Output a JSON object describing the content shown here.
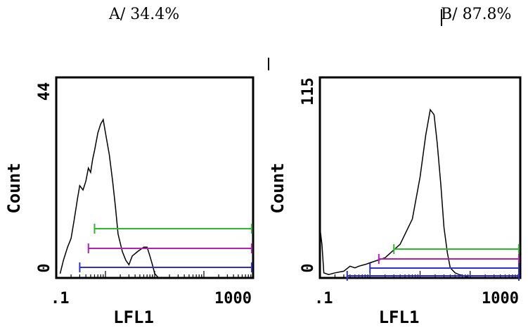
{
  "captions": [
    "A/ 34.4%",
    "B/ 87.8%"
  ],
  "chart_data": [
    {
      "type": "line",
      "title": "A/ 34.4%",
      "xlabel": "LFL1",
      "ylabel": "Count",
      "x_scale": "log",
      "xlim": [
        0.1,
        1000
      ],
      "ylim": [
        0,
        44
      ],
      "x_ticks": [
        ".1",
        "1000"
      ],
      "y_ticks": [
        "0",
        "44"
      ],
      "series": [
        {
          "values": [
            [
              0.12,
              1
            ],
            [
              0.14,
              4
            ],
            [
              0.17,
              7
            ],
            [
              0.2,
              9
            ],
            [
              0.23,
              13
            ],
            [
              0.27,
              18
            ],
            [
              0.3,
              21
            ],
            [
              0.35,
              20
            ],
            [
              0.4,
              22
            ],
            [
              0.45,
              25
            ],
            [
              0.5,
              24
            ],
            [
              0.55,
              27
            ],
            [
              0.6,
              29
            ],
            [
              0.7,
              33
            ],
            [
              0.8,
              35
            ],
            [
              0.9,
              36
            ],
            [
              1.0,
              33
            ],
            [
              1.2,
              28
            ],
            [
              1.4,
              22
            ],
            [
              1.6,
              16
            ],
            [
              1.8,
              10
            ],
            [
              2.2,
              6
            ],
            [
              2.6,
              4
            ],
            [
              3.0,
              3
            ],
            [
              3.5,
              5
            ],
            [
              4.5,
              6
            ],
            [
              6,
              7
            ],
            [
              7,
              7
            ],
            [
              8,
              5
            ],
            [
              9,
              3
            ],
            [
              10,
              1
            ],
            [
              12,
              0
            ]
          ]
        }
      ],
      "gates": [
        {
          "color": "#2eb82e",
          "start": 0.6,
          "end": 1000
        },
        {
          "color": "#b21fb2",
          "start": 0.45,
          "end": 1000
        },
        {
          "color": "#2f2fd6",
          "start": 0.3,
          "end": 1000
        }
      ]
    },
    {
      "type": "line",
      "title": "B/ 87.8%",
      "xlabel": "LFL1",
      "ylabel": "Count",
      "x_scale": "log",
      "xlim": [
        0.1,
        1000
      ],
      "ylim": [
        0,
        115
      ],
      "x_ticks": [
        ".1",
        "1000"
      ],
      "y_ticks": [
        "0",
        "115"
      ],
      "series": [
        {
          "values": [
            [
              0.1,
              30
            ],
            [
              0.11,
              20
            ],
            [
              0.12,
              3
            ],
            [
              0.15,
              2
            ],
            [
              0.2,
              3
            ],
            [
              0.3,
              4
            ],
            [
              0.4,
              7
            ],
            [
              0.5,
              6
            ],
            [
              0.6,
              7
            ],
            [
              0.8,
              8
            ],
            [
              1.0,
              9
            ],
            [
              2,
              12
            ],
            [
              4,
              20
            ],
            [
              7,
              35
            ],
            [
              10,
              60
            ],
            [
              13,
              85
            ],
            [
              16,
              100
            ],
            [
              19,
              97
            ],
            [
              22,
              80
            ],
            [
              26,
              55
            ],
            [
              30,
              30
            ],
            [
              35,
              15
            ],
            [
              40,
              6
            ],
            [
              50,
              3
            ],
            [
              60,
              2
            ],
            [
              80,
              1
            ],
            [
              100,
              0
            ]
          ]
        }
      ],
      "gates": [
        {
          "color": "#2eb82e",
          "start": 3,
          "end": 1000
        },
        {
          "color": "#b21fb2",
          "start": 1.5,
          "end": 1000
        },
        {
          "color": "#2f2fd6",
          "start": 1,
          "end": 1000
        },
        {
          "color": "#2f2fd6",
          "start": 0.35,
          "end": 1000
        }
      ]
    }
  ]
}
